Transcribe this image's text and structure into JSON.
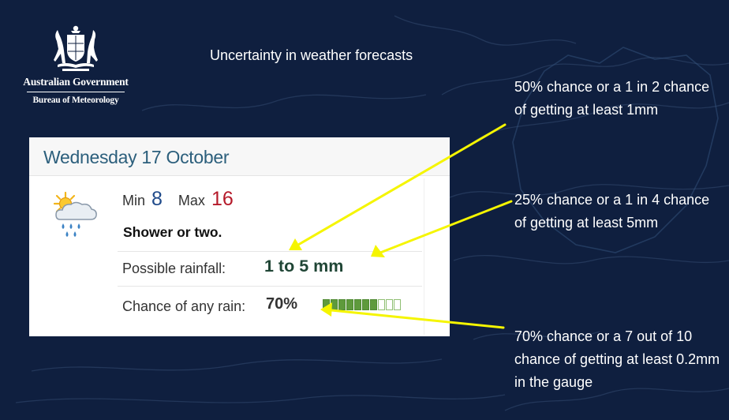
{
  "slide": {
    "title": "Uncertainty in weather forecasts",
    "colors": {
      "background": "#0f1f3f",
      "annotation_arrow": "#f5f500",
      "text": "#ffffff"
    }
  },
  "logo": {
    "icon": "coat-of-arms",
    "line1": "Australian Government",
    "line2": "Bureau of Meteorology"
  },
  "forecast_card": {
    "date": "Wednesday 17 October",
    "icon": "shower-cloud-sun-icon",
    "min_label": "Min",
    "min_value": "8",
    "max_label": "Max",
    "max_value": "16",
    "description": "Shower or two.",
    "rainfall_label": "Possible rainfall:",
    "rainfall_value": "1 to 5 mm",
    "chance_label": "Chance of any rain:",
    "chance_value": "70%",
    "chance_gauge": {
      "filled": 7,
      "total": 10
    },
    "colors": {
      "date": "#2c5f7c",
      "min": "#1f4a8a",
      "max": "#b51a2a",
      "gauge_fill": "#5e9a3c"
    }
  },
  "annotations": [
    {
      "text": "50% chance or a 1 in 2 chance of getting at least 1mm"
    },
    {
      "text": "25% chance or a 1 in 4 chance of getting at least 5mm"
    },
    {
      "text": "70% chance or a 7 out of 10 chance of getting at least 0.2mm in the gauge"
    }
  ]
}
